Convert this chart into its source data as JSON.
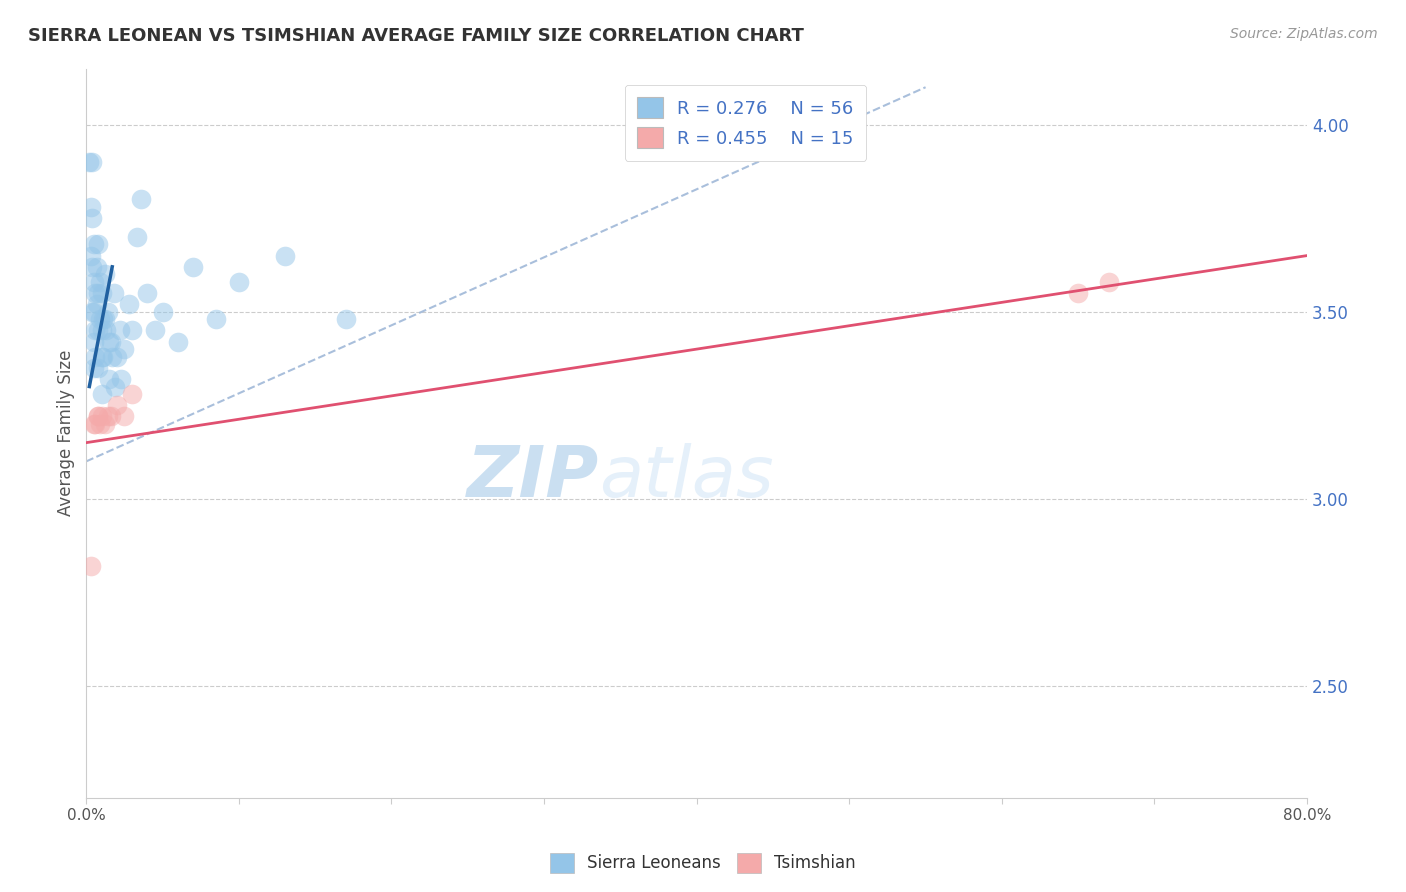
{
  "title": "SIERRA LEONEAN VS TSIMSHIAN AVERAGE FAMILY SIZE CORRELATION CHART",
  "source": "Source: ZipAtlas.com",
  "ylabel": "Average Family Size",
  "xlim": [
    0.0,
    0.8
  ],
  "ylim": [
    2.2,
    4.15
  ],
  "right_yticks": [
    2.5,
    3.0,
    3.5,
    4.0
  ],
  "xtick_positions": [
    0.0,
    0.1,
    0.2,
    0.3,
    0.4,
    0.5,
    0.6,
    0.7,
    0.8
  ],
  "xticklabels_sparse": [
    "0.0%",
    "",
    "",
    "",
    "",
    "",
    "",
    "",
    "80.0%"
  ],
  "legend_r1": "R = 0.276",
  "legend_n1": "N = 56",
  "legend_r2": "R = 0.455",
  "legend_n2": "N = 15",
  "blue_color": "#94C5E8",
  "pink_color": "#F4AAAA",
  "blue_line_color": "#2060A0",
  "pink_line_color": "#E05070",
  "ref_line_color": "#A0B8D8",
  "blue_scatter_x": [
    0.002,
    0.003,
    0.003,
    0.004,
    0.004,
    0.004,
    0.004,
    0.005,
    0.005,
    0.005,
    0.005,
    0.005,
    0.006,
    0.006,
    0.006,
    0.007,
    0.007,
    0.008,
    0.008,
    0.008,
    0.008,
    0.009,
    0.009,
    0.01,
    0.01,
    0.01,
    0.01,
    0.011,
    0.011,
    0.012,
    0.012,
    0.013,
    0.014,
    0.015,
    0.015,
    0.016,
    0.017,
    0.018,
    0.019,
    0.02,
    0.022,
    0.023,
    0.025,
    0.028,
    0.03,
    0.033,
    0.036,
    0.04,
    0.045,
    0.05,
    0.06,
    0.07,
    0.085,
    0.1,
    0.13,
    0.17
  ],
  "blue_scatter_y": [
    3.9,
    3.78,
    3.65,
    3.9,
    3.75,
    3.62,
    3.5,
    3.68,
    3.58,
    3.5,
    3.42,
    3.35,
    3.55,
    3.45,
    3.38,
    3.62,
    3.52,
    3.68,
    3.55,
    3.45,
    3.35,
    3.58,
    3.48,
    3.55,
    3.45,
    3.38,
    3.28,
    3.48,
    3.38,
    3.6,
    3.48,
    3.45,
    3.5,
    3.42,
    3.32,
    3.42,
    3.38,
    3.55,
    3.3,
    3.38,
    3.45,
    3.32,
    3.4,
    3.52,
    3.45,
    3.7,
    3.8,
    3.55,
    3.45,
    3.5,
    3.42,
    3.62,
    3.48,
    3.58,
    3.65,
    3.48
  ],
  "pink_scatter_x": [
    0.003,
    0.005,
    0.006,
    0.008,
    0.008,
    0.009,
    0.01,
    0.012,
    0.014,
    0.016,
    0.02,
    0.025,
    0.03,
    0.65,
    0.67
  ],
  "pink_scatter_y": [
    2.82,
    3.2,
    3.2,
    3.22,
    3.22,
    3.2,
    3.22,
    3.2,
    3.22,
    3.22,
    3.25,
    3.22,
    3.28,
    3.55,
    3.58
  ],
  "ref_line_x": [
    0.0,
    0.55
  ],
  "ref_line_y": [
    3.1,
    4.1
  ],
  "blue_regline_x": [
    0.002,
    0.017
  ],
  "blue_regline_y": [
    3.3,
    3.62
  ],
  "pink_regline_x": [
    0.0,
    0.8
  ],
  "pink_regline_y": [
    3.15,
    3.65
  ],
  "watermark_zip": "ZIP",
  "watermark_atlas": "atlas",
  "figsize": [
    14.06,
    8.92
  ],
  "dpi": 100
}
